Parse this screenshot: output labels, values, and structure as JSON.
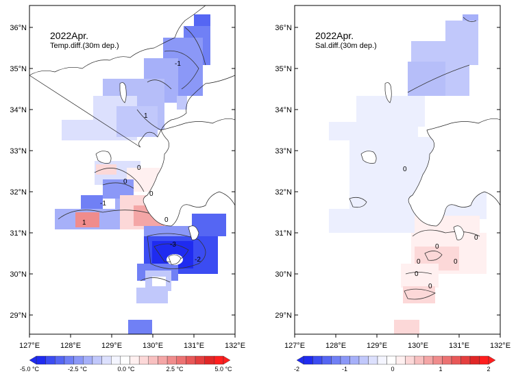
{
  "panels": [
    {
      "id": "temp",
      "title": "2022Apr.",
      "subtitle": "Temp.diff.(30m dep.)",
      "lat_ticks": [
        "36°N",
        "35°N",
        "34°N",
        "33°N",
        "32°N",
        "31°N",
        "30°N",
        "29°N"
      ],
      "lon_ticks": [
        "127°E",
        "128°E",
        "129°E",
        "130°E",
        "131°E",
        "132°E"
      ],
      "contour_labels": [
        "-1",
        "1",
        "0",
        "0",
        "0",
        "0",
        "-1",
        "-3",
        "-2",
        "1"
      ],
      "colorbar": {
        "labels": [
          "-5.0 °C",
          "-2.5 °C",
          "0.0 °C",
          "2.5 °C",
          "5.0 °C"
        ],
        "colors": [
          "#1f2bf0",
          "#3b4cf2",
          "#5566f3",
          "#7080f5",
          "#8b98f7",
          "#a6b0f9",
          "#c1c8fb",
          "#dce0fd",
          "#f4f5ff",
          "#ffffff",
          "#fff0f0",
          "#fcd8d8",
          "#f8c0c0",
          "#f4a6a6",
          "#f08c8c",
          "#ec7272",
          "#e85858",
          "#e43e3e",
          "#e02626",
          "#ff1e1e"
        ]
      }
    },
    {
      "id": "sal",
      "title": "2022Apr.",
      "subtitle": "Sal.diff.(30m dep.)",
      "lat_ticks": [
        "36°N",
        "35°N",
        "34°N",
        "33°N",
        "32°N",
        "31°N",
        "30°N",
        "29°N"
      ],
      "lon_ticks": [
        "127°E",
        "128°E",
        "129°E",
        "130°E",
        "131°E",
        "132°E"
      ],
      "contour_labels": [
        "0",
        "0",
        "0",
        "0",
        "0",
        "0",
        "0"
      ],
      "colorbar": {
        "labels": [
          "-2",
          "-1",
          "0",
          "1",
          "2"
        ],
        "colors": [
          "#1f2bf0",
          "#3b4cf2",
          "#5566f3",
          "#7080f5",
          "#8b98f7",
          "#a6b0f9",
          "#c1c8fb",
          "#dce0fd",
          "#f4f5ff",
          "#ffffff",
          "#fff0f0",
          "#fcd8d8",
          "#f8c0c0",
          "#f4a6a6",
          "#f08c8c",
          "#ec7272",
          "#e85858",
          "#e43e3e",
          "#e02626",
          "#ff1e1e"
        ]
      }
    }
  ]
}
